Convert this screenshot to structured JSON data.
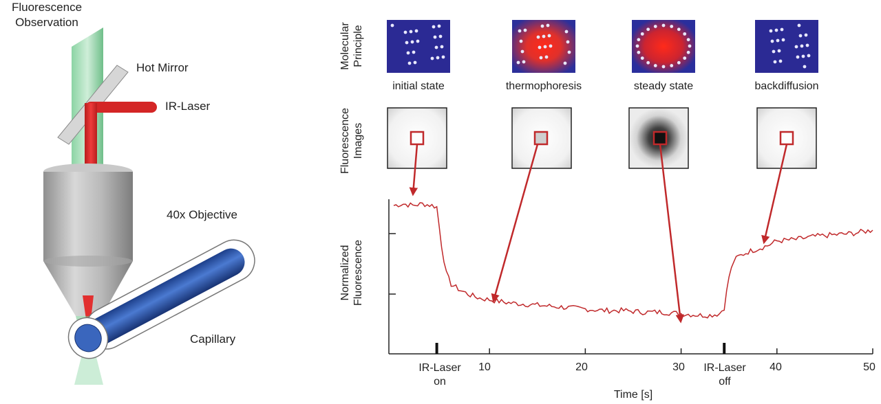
{
  "setup": {
    "fluorescence_observation": [
      "Fluorescence",
      "Observation"
    ],
    "hot_mirror": "Hot Mirror",
    "ir_laser": "IR-Laser",
    "objective": "40x Objective",
    "capillary": "Capillary"
  },
  "rows": {
    "molecular_principle": [
      "Molecular",
      "Principle"
    ],
    "fluorescence_images": [
      "Fluorescence",
      "Images"
    ],
    "normalized_fluorescence": [
      "Normalized",
      "Fluorescence"
    ]
  },
  "states": [
    "initial state",
    "thermophoresis",
    "steady state",
    "backdiffusion"
  ],
  "chart_data": {
    "type": "line",
    "xlabel": "Time [s]",
    "ylabel": "Normalized Fluorescence",
    "x_ticks": [
      "10",
      "20",
      "30",
      "40",
      "50"
    ],
    "xlim": [
      -0.5,
      50
    ],
    "event_labels": {
      "laser_on": [
        "IR-Laser",
        "on"
      ],
      "laser_off": [
        "IR-Laser",
        "off"
      ]
    },
    "events_x": {
      "laser_on": 4.5,
      "laser_off": 34.5
    },
    "series": [
      {
        "color": "#c0292b",
        "x": [
          0,
          1,
          2,
          3,
          4,
          4.5,
          5,
          5.5,
          6,
          7,
          8,
          9,
          10,
          12,
          14,
          16,
          18,
          20,
          22,
          24,
          26,
          28,
          30,
          32,
          33,
          34,
          34.5,
          35,
          35.5,
          36,
          37,
          38,
          39,
          40,
          42,
          44,
          46,
          48,
          50
        ],
        "y": [
          0.96,
          0.97,
          0.96,
          0.97,
          0.96,
          0.95,
          0.7,
          0.52,
          0.45,
          0.41,
          0.38,
          0.36,
          0.35,
          0.33,
          0.32,
          0.31,
          0.3,
          0.29,
          0.28,
          0.28,
          0.27,
          0.27,
          0.26,
          0.25,
          0.25,
          0.26,
          0.3,
          0.5,
          0.6,
          0.63,
          0.66,
          0.68,
          0.7,
          0.73,
          0.74,
          0.76,
          0.77,
          0.78,
          0.8
        ]
      }
    ]
  }
}
